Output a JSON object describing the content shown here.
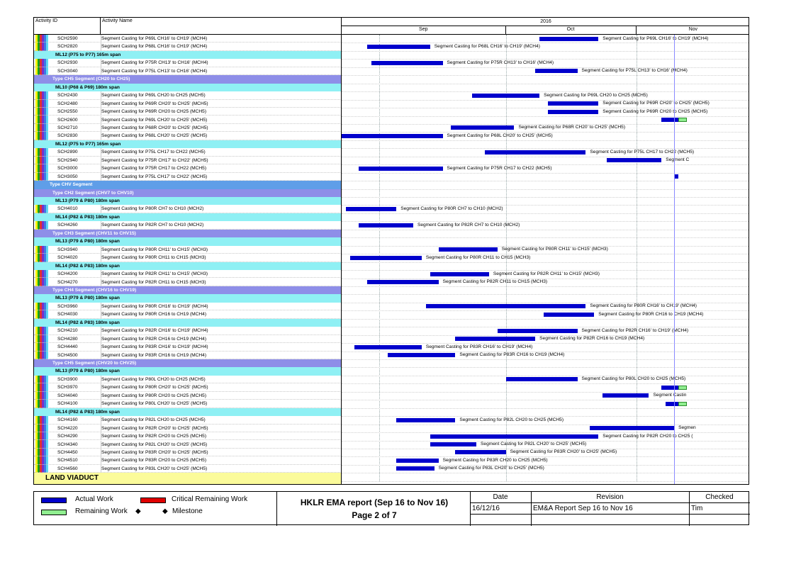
{
  "table_header": {
    "id": "Activity ID",
    "name": "Activity Name"
  },
  "timeline": {
    "year": "2016",
    "months": [
      "Sep",
      "Oct",
      "Nov"
    ]
  },
  "stripe_colors": [
    "#f2f200",
    "#1aa01a",
    "#e03030",
    "#7a30c8",
    "#3c78e6",
    "#60d8f0"
  ],
  "colors": {
    "actual": "#0000cc",
    "remaining": "#90ee90",
    "critical": "#e00000",
    "type": "#5f9ee8",
    "segment": "#8e8ee8",
    "span": "#8ff0f4",
    "land": "#fbfb9a"
  },
  "chart_data": {
    "type": "gantt",
    "x_axis": {
      "start": "2016-08-23",
      "end": "2016-11-28",
      "months": [
        "Sep",
        "Oct",
        "Nov"
      ],
      "year": "2016"
    },
    "rows": [
      {
        "kind": "act",
        "id": "SCH2590",
        "name": "Segment Casting for P69L CH16' to CH19' (MCH4)",
        "bars": [
          {
            "s": "2016-10-09",
            "e": "2016-10-23",
            "t": "actual"
          }
        ],
        "label": "Segment Casting for P69L CH16' to CH19' (MCH4)"
      },
      {
        "kind": "act",
        "id": "SCH2820",
        "name": "Segment Casting for P68L CH16' to CH19' (MCH4)",
        "bars": [
          {
            "s": "2016-08-29",
            "e": "2016-09-13",
            "t": "actual"
          }
        ],
        "label": "Segment Casting for P68L CH16' to CH19' (MCH4)"
      },
      {
        "kind": "g3",
        "name": "ML12 (P75 to P77) 165m span"
      },
      {
        "kind": "act",
        "id": "SCH2930",
        "name": "Segment Casting for P75R CH13' to CH16' (MCH4)",
        "bars": [
          {
            "s": "2016-08-30",
            "e": "2016-09-16",
            "t": "actual"
          }
        ],
        "label": "Segment Casting for P75R CH13' to CH16' (MCH4)"
      },
      {
        "kind": "act",
        "id": "SCH3040",
        "name": "Segment Casting for P75L CH13' to CH16' (MCH4)",
        "bars": [
          {
            "s": "2016-10-08",
            "e": "2016-10-18",
            "t": "actual"
          }
        ],
        "label": "Segment Casting for P75L CH13' to CH16' (MCH4)"
      },
      {
        "kind": "g2",
        "name": "Type CH5 Segment (CH20 to CH25)"
      },
      {
        "kind": "g3",
        "name": "ML10 (P68 & P69) 180m span"
      },
      {
        "kind": "act",
        "id": "SCH2430",
        "name": "Segment Casting for P69L CH20 to CH25 (MCH5)",
        "bars": [
          {
            "s": "2016-09-23",
            "e": "2016-10-09",
            "t": "actual"
          }
        ],
        "label": "Segment Casting for P69L CH20 to CH25 (MCH5)"
      },
      {
        "kind": "act",
        "id": "SCH2480",
        "name": "Segment Casting for P69R CH20' to CH25' (MCH5)",
        "bars": [
          {
            "s": "2016-10-11",
            "e": "2016-10-23",
            "t": "actual"
          }
        ],
        "label": "Segment Casting for P69R CH20' to CH25' (MCH5)"
      },
      {
        "kind": "act",
        "id": "SCH2550",
        "name": "Segment Casting for P69R CH20 to CH25 (MCH5)",
        "bars": [
          {
            "s": "2016-10-11",
            "e": "2016-10-23",
            "t": "actual"
          }
        ],
        "label": "Segment Casting for P69R CH20 to CH25 (MCH5)"
      },
      {
        "kind": "act",
        "id": "SCH2600",
        "name": "Segment Casting for P69L CH20' to CH25' (MCH5)",
        "bars": [
          {
            "s": "2016-11-07",
            "e": "2016-11-11",
            "t": "actual"
          },
          {
            "s": "2016-11-11",
            "e": "2016-11-13",
            "t": "remaining"
          }
        ],
        "label": ""
      },
      {
        "kind": "act",
        "id": "SCH2710",
        "name": "Segment Casting for P68R CH20' to CH25' (MCH5)",
        "bars": [
          {
            "s": "2016-09-18",
            "e": "2016-10-03",
            "t": "actual"
          }
        ],
        "label": "Segment Casting for P68R CH20' to CH25' (MCH5)"
      },
      {
        "kind": "act",
        "id": "SCH2830",
        "name": "Segment Casting for P68L CH20' to CH25' (MCH5)",
        "bars": [
          {
            "s": "2016-08-23",
            "e": "2016-09-16",
            "t": "actual"
          }
        ],
        "label": "Segment Casting for P68L CH20' to CH25' (MCH5)"
      },
      {
        "kind": "g3",
        "name": "ML12 (P75 to P77) 165m span"
      },
      {
        "kind": "act",
        "id": "SCH2890",
        "name": "Segment Casting for P75L CH17 to CH22 (MCH5)",
        "bars": [
          {
            "s": "2016-09-26",
            "e": "2016-10-20",
            "t": "actual"
          }
        ],
        "label": "Segment Casting for P75L CH17 to CH22 (MCH5)"
      },
      {
        "kind": "act",
        "id": "SCH2940",
        "name": "Segment Casting for P75R CH17' to CH22' (MCH5)",
        "bars": [
          {
            "s": "2016-10-25",
            "e": "2016-11-07",
            "t": "actual"
          }
        ],
        "label": "Segment C"
      },
      {
        "kind": "act",
        "id": "SCH3000",
        "name": "Segment Casting for P75R CH17 to CH22 (MCH5)",
        "bars": [
          {
            "s": "2016-08-27",
            "e": "2016-09-16",
            "t": "actual"
          }
        ],
        "label": "Segment Casting for P75R CH17 to CH22 (MCH5)"
      },
      {
        "kind": "act",
        "id": "SCH3050",
        "name": "Segment Casting for P75L CH17' to CH22' (MCH5)",
        "bars": [
          {
            "s": "2016-11-10",
            "e": "2016-11-11",
            "t": "actual"
          }
        ],
        "label": ""
      },
      {
        "kind": "g1",
        "name": "Type CHV Segment"
      },
      {
        "kind": "g2",
        "name": "Type CH2 Segment (CHV7 to CHV10)"
      },
      {
        "kind": "g3",
        "name": "ML13 (P79 & P80) 180m span"
      },
      {
        "kind": "act",
        "id": "SCH4010",
        "name": "Segment Casting for P80R CH7 to CH10 (MCH2)",
        "bars": [
          {
            "s": "2016-08-24",
            "e": "2016-09-05",
            "t": "actual"
          }
        ],
        "label": "Segment Casting for P80R CH7 to CH10 (MCH2)"
      },
      {
        "kind": "g3",
        "name": "ML14 (P82 & P83) 180m span"
      },
      {
        "kind": "act",
        "id": "SCH4260",
        "name": "Segment Casting for P82R CH7 to CH10 (MCH2)",
        "bars": [
          {
            "s": "2016-08-27",
            "e": "2016-09-09",
            "t": "actual"
          }
        ],
        "label": "Segment Casting for P82R CH7 to CH10 (MCH2)"
      },
      {
        "kind": "g2",
        "name": "Type CH3 Segment (CHV11 to CHV15)"
      },
      {
        "kind": "g3",
        "name": "ML13 (P79 & P80) 180m span"
      },
      {
        "kind": "act",
        "id": "SCH3940",
        "name": "Segment Casting for P80R CH11' to CH15' (MCH3)",
        "bars": [
          {
            "s": "2016-09-15",
            "e": "2016-09-29",
            "t": "actual"
          }
        ],
        "label": "Segment Casting for P80R CH11' to CH15' (MCH3)"
      },
      {
        "kind": "act",
        "id": "SCH4020",
        "name": "Segment Casting for P80R CH11 to CH15 (MCH3)",
        "bars": [
          {
            "s": "2016-08-25",
            "e": "2016-09-11",
            "t": "actual"
          }
        ],
        "label": "Segment Casting for P80R CH11 to CH15 (MCH3)"
      },
      {
        "kind": "g3",
        "name": "ML14 (P82 & P83) 180m span"
      },
      {
        "kind": "act",
        "id": "SCH4200",
        "name": "Segment Casting for P82R CH11' to CH15' (MCH3)",
        "bars": [
          {
            "s": "2016-09-13",
            "e": "2016-09-27",
            "t": "actual"
          }
        ],
        "label": "Segment Casting for P82R CH11' to CH15' (MCH3)"
      },
      {
        "kind": "act",
        "id": "SCH4270",
        "name": "Segment Casting for P82R CH11 to CH15 (MCH3)",
        "bars": [
          {
            "s": "2016-08-29",
            "e": "2016-09-15",
            "t": "actual"
          }
        ],
        "label": "Segment Casting for P82R CH11 to CH15 (MCH3)"
      },
      {
        "kind": "g2",
        "name": "Type CH4 Segment (CHV16 to CHV19)"
      },
      {
        "kind": "g3",
        "name": "ML13 (P79 & P80) 180m span"
      },
      {
        "kind": "act",
        "id": "SCH3960",
        "name": "Segment Casting for P80R CH16' to CH19' (MCH4)",
        "bars": [
          {
            "s": "2016-09-12",
            "e": "2016-10-20",
            "t": "actual"
          }
        ],
        "label": "Segment Casting for P80R CH16' to CH19' (MCH4)"
      },
      {
        "kind": "act",
        "id": "SCH4030",
        "name": "Segment Casting for P80R CH16 to CH19 (MCH4)",
        "bars": [
          {
            "s": "2016-10-10",
            "e": "2016-10-22",
            "t": "actual"
          }
        ],
        "label": "Segment Casting for P80R CH16 to CH19 (MCH4)"
      },
      {
        "kind": "g3",
        "name": "ML14 (P82 & P83) 180m span"
      },
      {
        "kind": "act",
        "id": "SCH4210",
        "name": "Segment Casting for P82R CH16' to CH19' (MCH4)",
        "bars": [
          {
            "s": "2016-09-29",
            "e": "2016-10-18",
            "t": "actual"
          }
        ],
        "label": "Segment Casting for P82R CH16' to CH19' (MCH4)"
      },
      {
        "kind": "act",
        "id": "SCH4280",
        "name": "Segment Casting for P82R CH16 to CH19 (MCH4)",
        "bars": [
          {
            "s": "2016-09-19",
            "e": "2016-10-08",
            "t": "actual"
          }
        ],
        "label": "Segment Casting for P82R CH16 to CH19 (MCH4)"
      },
      {
        "kind": "act",
        "id": "SCH4440",
        "name": "Segment Casting for P83R CH16' to CH19' (MCH4)",
        "bars": [
          {
            "s": "2016-08-26",
            "e": "2016-09-11",
            "t": "actual"
          }
        ],
        "label": "Segment Casting for P83R CH16' to CH19' (MCH4)"
      },
      {
        "kind": "act",
        "id": "SCH4500",
        "name": "Segment Casting for P83R CH16 to CH19 (MCH4)",
        "bars": [
          {
            "s": "2016-09-03",
            "e": "2016-09-19",
            "t": "actual"
          }
        ],
        "label": "Segment Casting for P83R CH16 to CH19 (MCH4)"
      },
      {
        "kind": "g2",
        "name": "Type CH5 Segment (CHV20 to CHV25)"
      },
      {
        "kind": "g3",
        "name": "ML13 (P79 & P80) 180m span"
      },
      {
        "kind": "act",
        "id": "SCH3900",
        "name": "Segment Casting for P80L CH20 to CH25 (MCH5)",
        "bars": [
          {
            "s": "2016-10-01",
            "e": "2016-10-18",
            "t": "actual"
          }
        ],
        "label": "Segment Casting for P80L CH20 to CH25 (MCH5)"
      },
      {
        "kind": "act",
        "id": "SCH3970",
        "name": "Segment Casting for P80R CH20' to CH25' (MCH5)",
        "bars": [
          {
            "s": "2016-11-07",
            "e": "2016-11-11",
            "t": "actual"
          },
          {
            "s": "2016-11-11",
            "e": "2016-11-13",
            "t": "remaining"
          }
        ],
        "label": ""
      },
      {
        "kind": "act",
        "id": "SCH4040",
        "name": "Segment Casting for P80R CH20 to CH25 (MCH5)",
        "bars": [
          {
            "s": "2016-10-24",
            "e": "2016-11-04",
            "t": "actual"
          }
        ],
        "label": "Segment Castin"
      },
      {
        "kind": "act",
        "id": "SCH4100",
        "name": "Segment Casting for P80L CH20' to CH25' (MCH5)",
        "bars": [
          {
            "s": "2016-11-08",
            "e": "2016-11-11",
            "t": "actual"
          },
          {
            "s": "2016-11-11",
            "e": "2016-11-13",
            "t": "remaining"
          }
        ],
        "label": ""
      },
      {
        "kind": "g3",
        "name": "ML14 (P82 & P83) 180m span"
      },
      {
        "kind": "act",
        "id": "SCH4160",
        "name": "Segment Casting for P82L CH20 to CH25 (MCH5)",
        "bars": [
          {
            "s": "2016-09-05",
            "e": "2016-09-19",
            "t": "actual"
          }
        ],
        "label": "Segment Casting for P82L CH20 to CH25 (MCH5)"
      },
      {
        "kind": "act",
        "id": "SCH4220",
        "name": "Segment Casting for P82R CH20' to CH25' (MCH5)",
        "bars": [
          {
            "s": "2016-10-21",
            "e": "2016-11-10",
            "t": "actual"
          }
        ],
        "label": "Segmen"
      },
      {
        "kind": "act",
        "id": "SCH4290",
        "name": "Segment Casting for P82R CH20 to CH25 (MCH5)",
        "bars": [
          {
            "s": "2016-09-13",
            "e": "2016-10-23",
            "t": "actual"
          }
        ],
        "label": "Segment Casting for P82R CH20 to CH25 ("
      },
      {
        "kind": "act",
        "id": "SCH4340",
        "name": "Segment Casting for P82L CH20' to CH25' (MCH5)",
        "bars": [
          {
            "s": "2016-09-13",
            "e": "2016-09-24",
            "t": "actual"
          }
        ],
        "label": "Segment Casting for P82L CH20' to CH25' (MCH5)"
      },
      {
        "kind": "act",
        "id": "SCH4450",
        "name": "Segment Casting for P83R CH20' to CH25' (MCH5)",
        "bars": [
          {
            "s": "2016-09-19",
            "e": "2016-10-01",
            "t": "actual"
          }
        ],
        "label": "Segment Casting for P83R CH20' to CH25' (MCH5)"
      },
      {
        "kind": "act",
        "id": "SCH4510",
        "name": "Segment Casting for P83R CH20 to CH25 (MCH5)",
        "bars": [
          {
            "s": "2016-09-05",
            "e": "2016-09-15",
            "t": "actual"
          }
        ],
        "label": "Segment Casting for P83R CH20 to CH25 (MCH5)"
      },
      {
        "kind": "act",
        "id": "SCH4560",
        "name": "Segment Casting for P83L CH20' to CH25' (MCH5)",
        "bars": [
          {
            "s": "2016-09-05",
            "e": "2016-09-14",
            "t": "actual"
          }
        ],
        "label": "Segment Casting for P83L CH20' to CH25' (MCH5)"
      },
      {
        "kind": "g0",
        "name": "LAND VIADUCT"
      }
    ]
  },
  "legend": {
    "actual": "Actual Work",
    "critical": "Critical Remaining Work",
    "remaining": "Remaining Work",
    "milestone": "Milestone",
    "diamond": "◆"
  },
  "report": {
    "title": "HKLR EMA report (Sep 16 to Nov 16)",
    "page": "Page 2 of 7"
  },
  "signoff": {
    "date_label": "Date",
    "revision_label": "Revision",
    "checked_label": "Checked",
    "date": "16/12/16",
    "revision": "EM&A Report Sep 16 to Nov 16",
    "checked": "Tim"
  }
}
